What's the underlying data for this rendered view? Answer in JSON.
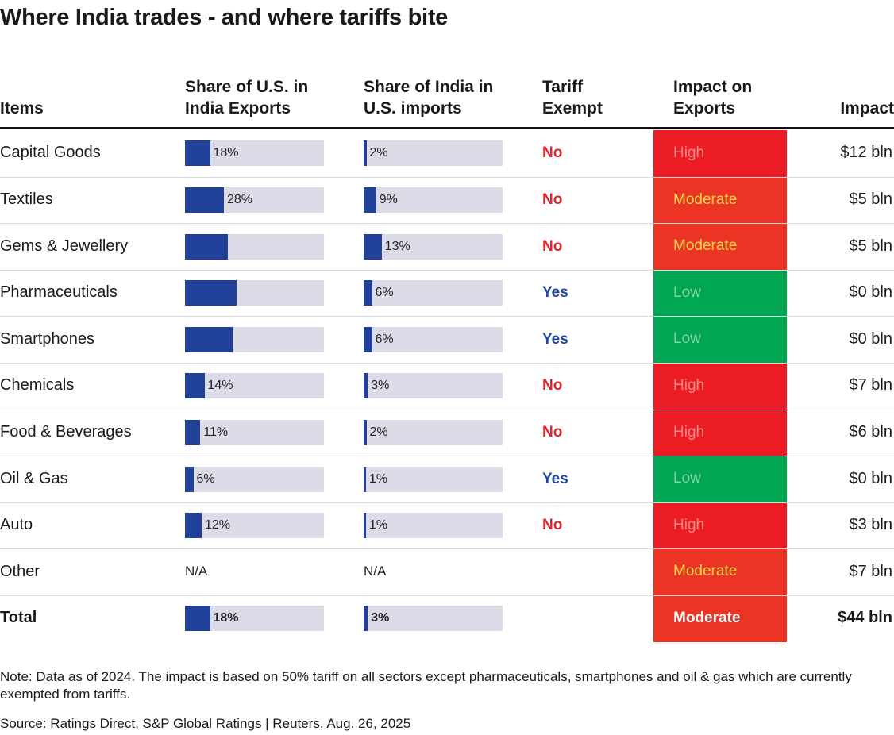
{
  "title": "Where India trades - and where tariffs bite",
  "headers": {
    "items": "Items",
    "share_us_line1": "Share of U.S. in",
    "share_us_line2": "India Exports",
    "share_india_line1": "Share of India in",
    "share_india_line2": "U.S. imports",
    "tariff_line1": "Tariff",
    "tariff_line2": "Exempt",
    "impact_exports_line1": "Impact on",
    "impact_exports_line2": "Exports",
    "impact": "Impact"
  },
  "colors": {
    "bar_fill": "#21409a",
    "bar_track": "#dcdce8",
    "no": "#e3232b",
    "yes": "#1f48a0",
    "high": "#ec1c24",
    "moderate": "#ec3425",
    "low": "#00a651",
    "high_text": "#f28b85",
    "moderate_text": "#fcd44a",
    "low_text": "#7fd3a5",
    "total_text": "#ffffff"
  },
  "chart_data": {
    "type": "table",
    "title": "Where India trades - and where tariffs bite",
    "columns": [
      "Items",
      "Share of U.S. in India Exports",
      "Share of India in U.S. imports",
      "Tariff Exempt",
      "Impact on Exports",
      "Impact"
    ],
    "rows": [
      {
        "item": "Capital Goods",
        "us_share": 18,
        "us_share_label": "18%",
        "india_share": 2,
        "india_share_label": "2%",
        "exempt": "No",
        "level": "High",
        "impact": "$12 bln"
      },
      {
        "item": "Textiles",
        "us_share": 28,
        "us_share_label": "28%",
        "india_share": 9,
        "india_share_label": "9%",
        "exempt": "No",
        "level": "Moderate",
        "impact": "$5 bln"
      },
      {
        "item": "Gems & Jewellery",
        "us_share": 31,
        "us_share_label": "",
        "india_share": 13,
        "india_share_label": "13%",
        "exempt": "No",
        "level": "Moderate",
        "impact": "$5 bln"
      },
      {
        "item": "Pharmaceuticals",
        "us_share": 37,
        "us_share_label": "",
        "india_share": 6,
        "india_share_label": "6%",
        "exempt": "Yes",
        "level": "Low",
        "impact": "$0 bln"
      },
      {
        "item": "Smartphones",
        "us_share": 34,
        "us_share_label": "",
        "india_share": 6,
        "india_share_label": "6%",
        "exempt": "Yes",
        "level": "Low",
        "impact": "$0 bln"
      },
      {
        "item": "Chemicals",
        "us_share": 14,
        "us_share_label": "14%",
        "india_share": 3,
        "india_share_label": "3%",
        "exempt": "No",
        "level": "High",
        "impact": "$7 bln"
      },
      {
        "item": "Food & Beverages",
        "us_share": 11,
        "us_share_label": "11%",
        "india_share": 2,
        "india_share_label": "2%",
        "exempt": "No",
        "level": "High",
        "impact": "$6 bln"
      },
      {
        "item": "Oil & Gas",
        "us_share": 6,
        "us_share_label": "6%",
        "india_share": 1,
        "india_share_label": "1%",
        "exempt": "Yes",
        "level": "Low",
        "impact": "$0 bln"
      },
      {
        "item": "Auto",
        "us_share": 12,
        "us_share_label": "12%",
        "india_share": 1,
        "india_share_label": "1%",
        "exempt": "No",
        "level": "High",
        "impact": "$3 bln"
      },
      {
        "item": "Other",
        "us_share": null,
        "us_share_label": "N/A",
        "india_share": null,
        "india_share_label": "N/A",
        "exempt": "",
        "level": "Moderate",
        "impact": "$7 bln"
      }
    ],
    "total": {
      "item": "Total",
      "us_share": 18,
      "us_share_label": "18%",
      "india_share": 3,
      "india_share_label": "3%",
      "exempt": "",
      "level": "Moderate",
      "impact": "$44 bln"
    },
    "share_scale_max": 100
  },
  "note": "Note: Data as of 2024. The impact is based on 50% tariff on all sectors except pharmaceuticals, smartphones and oil & gas which are currently exempted from tariffs.",
  "source": "Source: Ratings Direct, S&P Global Ratings | Reuters, Aug. 26, 2025"
}
